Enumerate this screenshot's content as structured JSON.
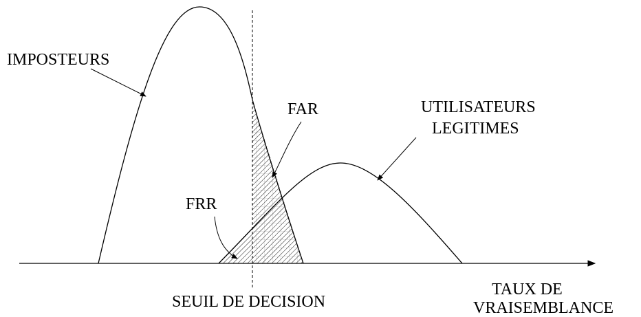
{
  "labels": {
    "impostors": "IMPOSTEURS",
    "far": "FAR",
    "legitimate_1": "UTILISATEURS",
    "legitimate_2": "LEGITIMES",
    "frr": "FRR",
    "threshold": "SEUIL DE DECISION",
    "axis_1": "TAUX DE",
    "axis_2": "VRAISEMBLANCE"
  }
}
